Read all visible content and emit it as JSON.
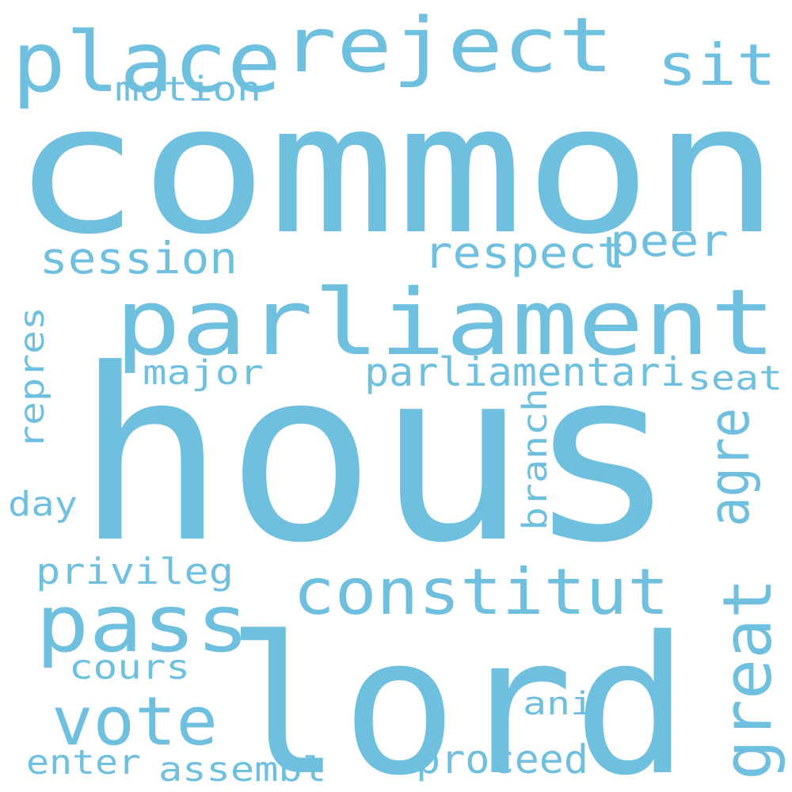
{
  "word_color": "#6fbfdf",
  "background_color": "#ffffff",
  "words": [
    {
      "text": "hous",
      "orientation": "horizontal"
    },
    {
      "text": "common",
      "orientation": "horizontal"
    },
    {
      "text": "lord",
      "orientation": "horizontal"
    },
    {
      "text": "parliament",
      "orientation": "horizontal"
    },
    {
      "text": "place",
      "orientation": "horizontal"
    },
    {
      "text": "reject",
      "orientation": "horizontal"
    },
    {
      "text": "pass",
      "orientation": "horizontal"
    },
    {
      "text": "constitut",
      "orientation": "horizontal"
    },
    {
      "text": "vote",
      "orientation": "horizontal"
    },
    {
      "text": "great",
      "orientation": "vertical"
    },
    {
      "text": "agre",
      "orientation": "vertical"
    },
    {
      "text": "sit",
      "orientation": "horizontal"
    },
    {
      "text": "respect",
      "orientation": "horizontal"
    },
    {
      "text": "peer",
      "orientation": "horizontal"
    },
    {
      "text": "session",
      "orientation": "horizontal"
    },
    {
      "text": "parliamentari",
      "orientation": "horizontal"
    },
    {
      "text": "proceed",
      "orientation": "horizontal"
    },
    {
      "text": "privileg",
      "orientation": "horizontal"
    },
    {
      "text": "motion",
      "orientation": "horizontal"
    },
    {
      "text": "major",
      "orientation": "horizontal"
    },
    {
      "text": "cours",
      "orientation": "horizontal"
    },
    {
      "text": "assembl",
      "orientation": "horizontal"
    },
    {
      "text": "branch",
      "orientation": "vertical"
    },
    {
      "text": "seat",
      "orientation": "horizontal"
    },
    {
      "text": "repres",
      "orientation": "vertical"
    },
    {
      "text": "enter",
      "orientation": "horizontal"
    },
    {
      "text": "day",
      "orientation": "horizontal"
    },
    {
      "text": "ani",
      "orientation": "horizontal"
    }
  ]
}
